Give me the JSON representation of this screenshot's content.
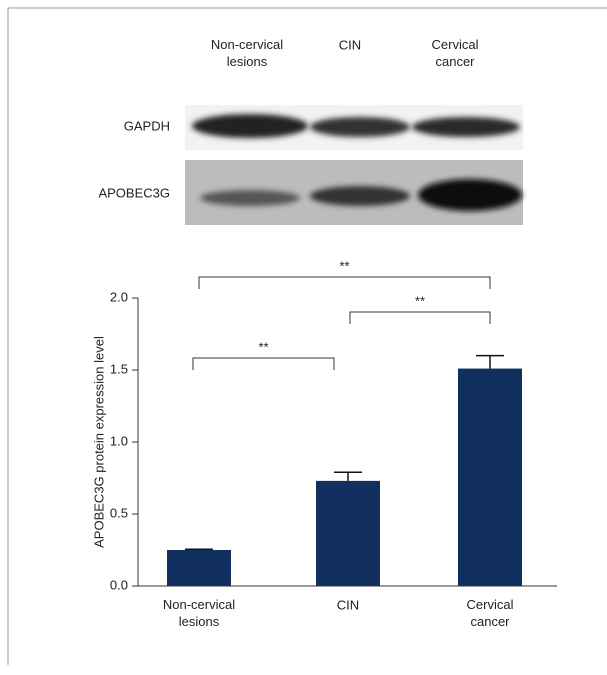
{
  "blot": {
    "lanes": [
      "Non-cervical\nlesions",
      "CIN",
      "Cervical\ncancer"
    ],
    "rows": [
      "GAPDH",
      "APOBEC3G"
    ]
  },
  "chart_data": {
    "type": "bar",
    "y_label": "APOBEC3G protein expression level",
    "categories": [
      "Non-cervical\nlesions",
      "CIN",
      "Cervical\ncancer"
    ],
    "values": [
      0.25,
      0.73,
      1.51
    ],
    "errors": [
      0.005,
      0.06,
      0.09
    ],
    "color": "#11305f",
    "ylim": [
      0,
      2
    ],
    "yticks": [
      {
        "value": 0,
        "label": "0.0"
      },
      {
        "value": 0.5,
        "label": "0.5"
      },
      {
        "value": 1,
        "label": "1.0"
      },
      {
        "value": 1.5,
        "label": "1.5"
      },
      {
        "value": 2,
        "label": "2.0"
      }
    ],
    "comparisons": [
      {
        "label": "**",
        "groups": [
          0,
          1
        ]
      },
      {
        "label": "**",
        "groups": [
          1,
          2
        ]
      },
      {
        "label": "**",
        "groups": [
          0,
          2
        ]
      }
    ]
  }
}
